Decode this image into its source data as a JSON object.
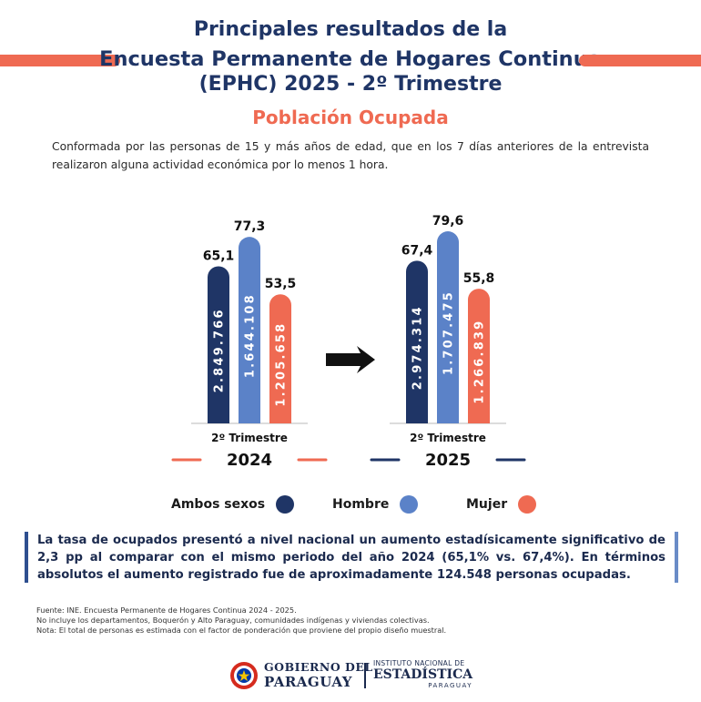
{
  "header": {
    "title_line1": "Principales resultados de la",
    "title_line2": "Encuesta Permanente de Hogares Continua",
    "title_line3": "(EPHC) 2025 - 2º Trimestre",
    "subtitle": "Población Ocupada",
    "definition": "Conformada por las personas de 15 y más años de edad, que en los 7 días anteriores de la entrevista realizaron alguna actividad económica por lo menos 1 hora."
  },
  "colors": {
    "ambos": "#1f3566",
    "hombre": "#5b82c8",
    "mujer": "#ef6a52",
    "accent": "#ef6a52",
    "title": "#1f3566"
  },
  "chart_data": {
    "type": "bar",
    "groups": [
      {
        "period": "2º Trimestre",
        "year": "2024",
        "bars": [
          {
            "series": "Ambos sexos",
            "rate": 65.1,
            "rate_label": "65,1",
            "persons_label": "2.849.766"
          },
          {
            "series": "Hombre",
            "rate": 77.3,
            "rate_label": "77,3",
            "persons_label": "1.644.108"
          },
          {
            "series": "Mujer",
            "rate": 53.5,
            "rate_label": "53,5",
            "persons_label": "1.205.658"
          }
        ]
      },
      {
        "period": "2º Trimestre",
        "year": "2025",
        "bars": [
          {
            "series": "Ambos sexos",
            "rate": 67.4,
            "rate_label": "67,4",
            "persons_label": "2.974.314"
          },
          {
            "series": "Hombre",
            "rate": 79.6,
            "rate_label": "79,6",
            "persons_label": "1.707.475"
          },
          {
            "series": "Mujer",
            "rate": 55.8,
            "rate_label": "55,8",
            "persons_label": "1.266.839"
          }
        ]
      }
    ],
    "legend": [
      {
        "label": "Ambos sexos",
        "color": "#1f3566"
      },
      {
        "label": "Hombre",
        "color": "#5b82c8"
      },
      {
        "label": "Mujer",
        "color": "#ef6a52"
      }
    ],
    "legend_position": "bottom"
  },
  "summary": "La tasa de ocupados presentó a nivel nacional un aumento estadísicamente significativo de 2,3 pp al comparar con el mismo periodo del año 2024 (65,1% vs. 67,4%). En términos absolutos el aumento registrado fue de aproximadamente 124.548 personas ocupadas.",
  "sources": {
    "line1": "Fuente: INE. Encuesta Permanente de Hogares Continua 2024 - 2025.",
    "line2": "No incluye los departamentos, Boquerón y Alto Paraguay, comunidades indígenas y viviendas colectivas.",
    "line3": "Nota: El total de personas es estimada con el factor de ponderación que proviene del propio diseño muestral."
  },
  "footer": {
    "gov_line1": "GOBIERNO DEL",
    "gov_line2": "PARAGUAY",
    "ine_line1": "INSTITUTO NACIONAL DE",
    "ine_line2": "ESTADÍSTICA",
    "ine_line3": "PARAGUAY"
  }
}
